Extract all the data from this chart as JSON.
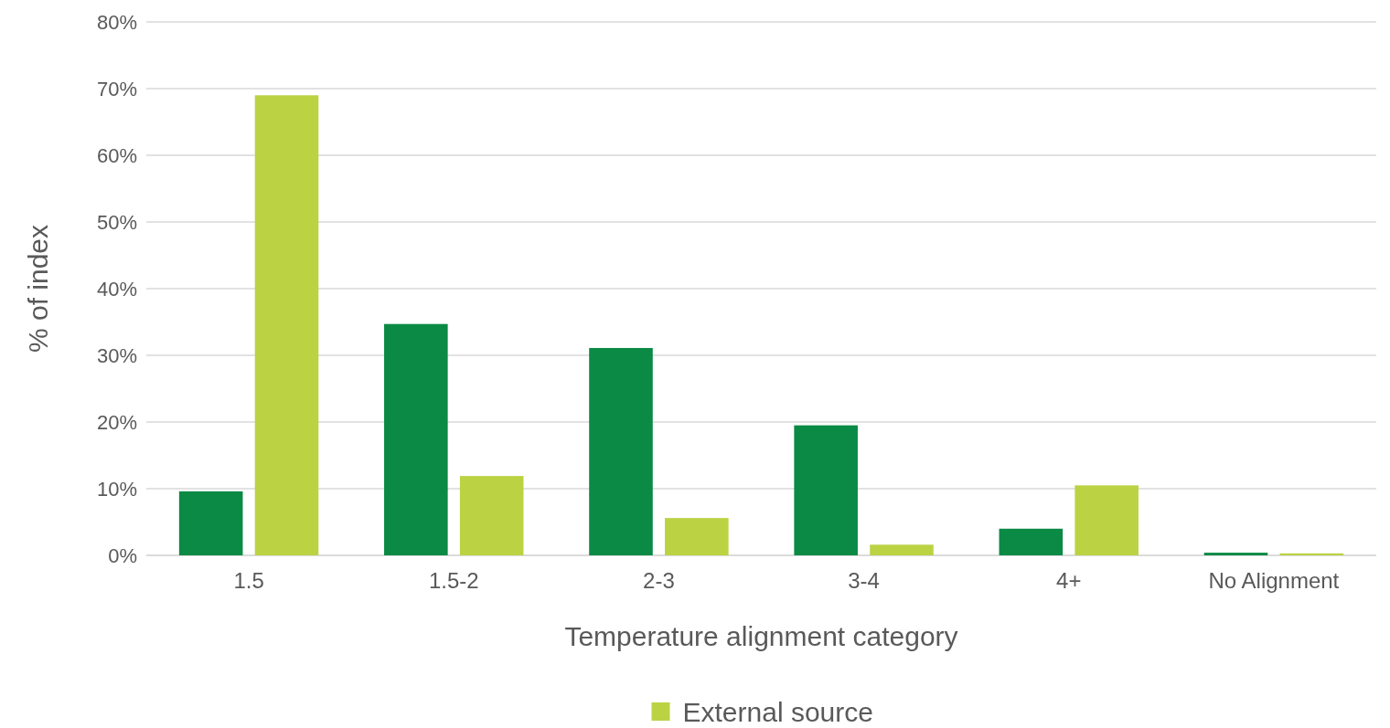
{
  "chart_data": {
    "type": "bar",
    "xlabel": "Temperature alignment category",
    "ylabel": "% of index",
    "categories": [
      "1.5",
      "1.5-2",
      "2-3",
      "3-4",
      "4+",
      "No Alignment"
    ],
    "series": [
      {
        "color": "#0b8a45",
        "values": [
          9.6,
          34.7,
          31.1,
          19.5,
          4.0,
          0.4
        ]
      },
      {
        "name": "External source",
        "color": "#bbd343",
        "values": [
          69.0,
          11.9,
          5.6,
          1.6,
          10.5,
          0.3
        ]
      }
    ],
    "ylim": [
      0,
      80
    ],
    "yticks": [
      {
        "value": 0,
        "label": "0%"
      },
      {
        "value": 10,
        "label": "10%"
      },
      {
        "value": 20,
        "label": "20%"
      },
      {
        "value": 30,
        "label": "30%"
      },
      {
        "value": 40,
        "label": "40%"
      },
      {
        "value": 50,
        "label": "50%"
      },
      {
        "value": 60,
        "label": "60%"
      },
      {
        "value": 70,
        "label": "70%"
      },
      {
        "value": 80,
        "label": "80%"
      }
    ],
    "grid": "y",
    "legend": "bottom"
  }
}
